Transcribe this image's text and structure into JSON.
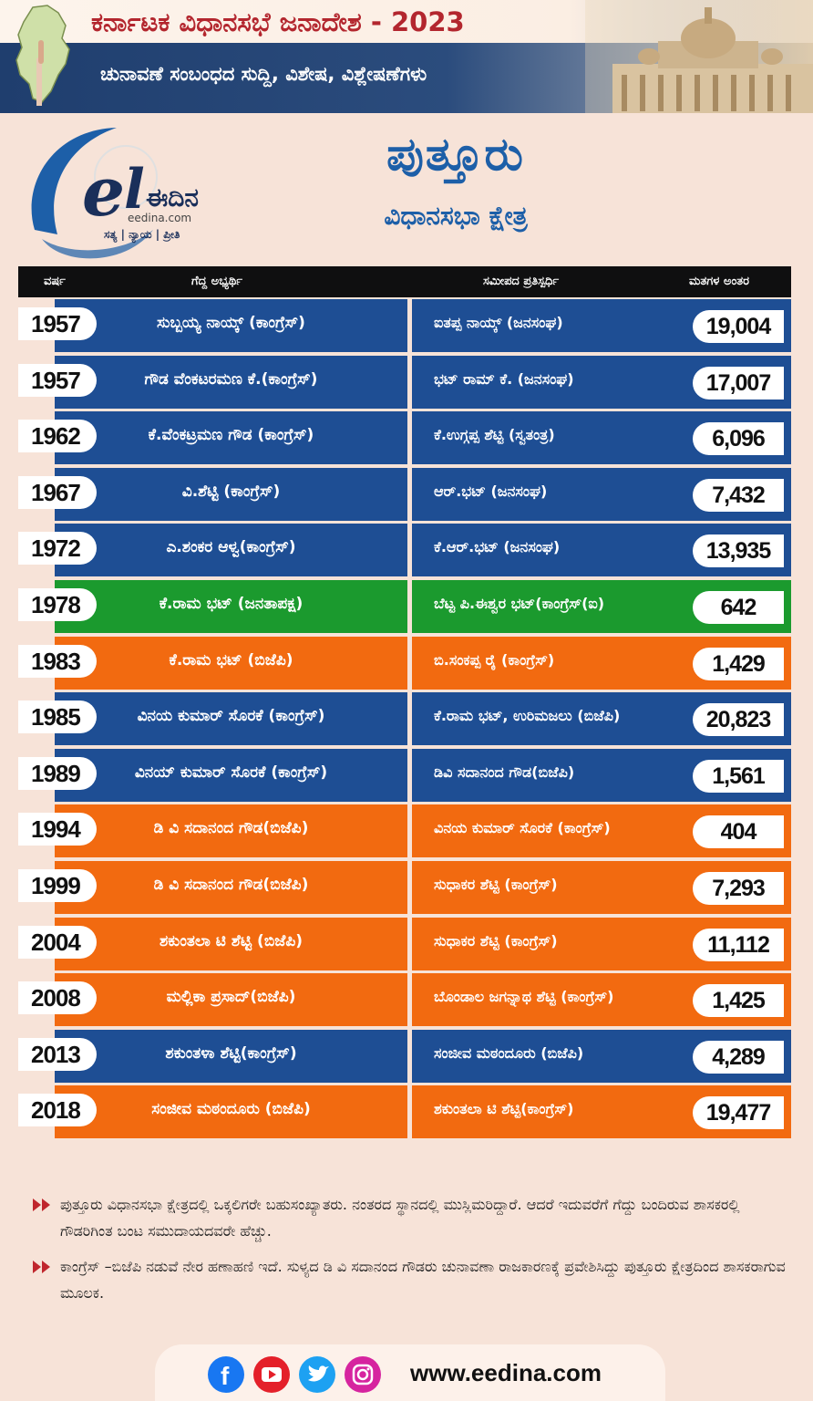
{
  "header": {
    "title": "ಕರ್ನಾಟಕ ವಿಧಾನಸಭೆ ಜನಾದೇಶ - 2023",
    "subtitle": "ಚುನಾವಣೆ ಸಂಬಂಧದ ಸುದ್ದಿ, ವಿಶೇಷ, ವಿಶ್ಲೇಷಣೆಗಳು"
  },
  "logo": {
    "name": "ಈದಿನ",
    "domain": "eedina.com",
    "tagline": "ಸತ್ಯ | ನ್ಯಾಯ | ಪ್ರೀತಿ"
  },
  "constituency": {
    "name": "ಪುತ್ತೂರು",
    "type": "ವಿಧಾನಸಭಾ ಕ್ಷೇತ್ರ"
  },
  "table": {
    "headers": {
      "year": "ವರ್ಷ",
      "winner": "ಗೆದ್ದ ಅಭ್ಯರ್ಥಿ",
      "runner": "ಸಮೀಪದ ಪ್ರತಿಸ್ಪರ್ಧಿ",
      "margin": "ಮತಗಳ ಅಂತರ"
    },
    "rows": [
      {
        "year": "1957",
        "winner": "ಸುಬ್ಬಯ್ಯ ನಾಯ್ಕ್ (ಕಾಂಗ್ರೆಸ್)",
        "runner": "ಐತಪ್ಪ ನಾಯ್ಕ್ (ಜನಸಂಘ)",
        "margin": "19,004",
        "color": "#1e4e94"
      },
      {
        "year": "1957",
        "winner": "ಗೌಡ ವೆಂಕಟರಮಣ ಕೆ.(ಕಾಂಗ್ರೆಸ್)",
        "runner": "ಭಟ್ ರಾಮ್ ಕೆ. (ಜನಸಂಘ)",
        "margin": "17,007",
        "color": "#1e4e94"
      },
      {
        "year": "1962",
        "winner": "ಕೆ.ವೆಂಕಟ್ರಮಣ ಗೌಡ (ಕಾಂಗ್ರೆಸ್)",
        "runner": "ಕೆ.ಉಗ್ಗಪ್ಪ ಶೆಟ್ಟಿ (ಸ್ವತಂತ್ರ)",
        "margin": "6,096",
        "color": "#1e4e94"
      },
      {
        "year": "1967",
        "winner": "ವಿ.ಶೆಟ್ಟಿ (ಕಾಂಗ್ರೆಸ್)",
        "runner": "ಆರ್.ಭಟ್ (ಜನಸಂಘ)",
        "margin": "7,432",
        "color": "#1e4e94"
      },
      {
        "year": "1972",
        "winner": "ಎ.ಶಂಕರ ಆಳ್ವ(ಕಾಂಗ್ರೆಸ್)",
        "runner": "ಕೆ.ಆರ್.ಭಟ್ (ಜನಸಂಘ)",
        "margin": "13,935",
        "color": "#1e4e94"
      },
      {
        "year": "1978",
        "winner": "ಕೆ.ರಾಮ ಭಟ್ (ಜನತಾಪಕ್ಷ)",
        "runner": "ಬೆಟ್ಟ ಪಿ.ಈಶ್ವರ ಭಟ್(ಕಾಂಗ್ರೆಸ್(ಐ)",
        "margin": "642",
        "color": "#1b9a2e"
      },
      {
        "year": "1983",
        "winner": "ಕೆ.ರಾಮ ಭಟ್ (ಬಿಜೆಪಿ)",
        "runner": "ಬಿ.ಸಂಕಪ್ಪ ರೈ (ಕಾಂಗ್ರೆಸ್)",
        "margin": "1,429",
        "color": "#f26a10"
      },
      {
        "year": "1985",
        "winner": "ವಿನಯ ಕುಮಾರ್ ಸೊರಕೆ (ಕಾಂಗ್ರೆಸ್)",
        "runner": "ಕೆ.ರಾಮ ಭಟ್, ಉರಿಮಜಲು (ಬಿಜೆಪಿ)",
        "margin": "20,823",
        "color": "#1e4e94"
      },
      {
        "year": "1989",
        "winner": "ವಿನಯ್ ಕುಮಾರ್ ಸೊರಕೆ (ಕಾಂಗ್ರೆಸ್)",
        "runner": "ಡಿವಿ ಸದಾನಂದ ಗೌಡ(ಬಿಜೆಪಿ)",
        "margin": "1,561",
        "color": "#1e4e94"
      },
      {
        "year": "1994",
        "winner": "ಡಿ ವಿ ಸದಾನಂದ ಗೌಡ(ಬಿಜೆಪಿ)",
        "runner": "ವಿನಯ ಕುಮಾರ್ ಸೊರಕೆ (ಕಾಂಗ್ರೆಸ್)",
        "margin": "404",
        "color": "#f26a10"
      },
      {
        "year": "1999",
        "winner": "ಡಿ ವಿ ಸದಾನಂದ ಗೌಡ(ಬಿಜೆಪಿ)",
        "runner": "ಸುಧಾಕರ ಶೆಟ್ಟಿ (ಕಾಂಗ್ರೆಸ್)",
        "margin": "7,293",
        "color": "#f26a10"
      },
      {
        "year": "2004",
        "winner": "ಶಕುಂತಲಾ ಟಿ ಶೆಟ್ಟಿ (ಬಿಜೆಪಿ)",
        "runner": "ಸುಧಾಕರ ಶೆಟ್ಟಿ (ಕಾಂಗ್ರೆಸ್)",
        "margin": "11,112",
        "color": "#f26a10"
      },
      {
        "year": "2008",
        "winner": "ಮಲ್ಲಿಕಾ ಪ್ರಸಾದ್(ಬಿಜೆಪಿ)",
        "runner": "ಬೊಂಡಾಲ ಜಗನ್ನಾಥ ಶೆಟ್ಟಿ (ಕಾಂಗ್ರೆಸ್)",
        "margin": "1,425",
        "color": "#f26a10"
      },
      {
        "year": "2013",
        "winner": "ಶಕುಂತಳಾ ಶೆಟ್ಟಿ(ಕಾಂಗ್ರೆಸ್)",
        "runner": "ಸಂಜೀವ ಮಠಂದೂರು (ಬಿಜೆಪಿ)",
        "margin": "4,289",
        "color": "#1e4e94"
      },
      {
        "year": "2018",
        "winner": "ಸಂಜೀವ ಮಠಂದೂರು (ಬಿಜೆಪಿ)",
        "runner": "ಶಕುಂತಲಾ ಟಿ ಶೆಟ್ಟಿ(ಕಾಂಗ್ರೆಸ್)",
        "margin": "19,477",
        "color": "#f26a10"
      }
    ]
  },
  "notes": [
    "ಪುತ್ತೂರು ವಿಧಾನಸಭಾ ಕ್ಷೇತ್ರದಲ್ಲಿ ಒಕ್ಕಲಿಗರೇ ಬಹುಸಂಖ್ಯಾತರು. ನಂತರದ ಸ್ಥಾನದಲ್ಲಿ ಮುಸ್ಲಿಮರಿದ್ದಾರೆ. ಆದರೆ ಇದುವರೆಗೆ ಗೆದ್ದು ಬಂದಿರುವ ಶಾಸಕರಲ್ಲಿ ಗೌಡರಿಗಿಂತ ಬಂಟ ಸಮುದಾಯದವರೇ ಹೆಚ್ಚು.",
    "ಕಾಂಗ್ರೆಸ್ –ಬಿಜೆಪಿ ನಡುವೆ ನೇರ ಹಣಾಹಣಿ ಇದೆ. ಸುಳ್ಯದ ಡಿ ವಿ ಸದಾನಂದ ಗೌಡರು ಚುನಾವಣಾ ರಾಜಕಾರಣಕ್ಕೆ ಪ್ರವೇಶಿಸಿದ್ದು ಪುತ್ತೂರು ಕ್ಷೇತ್ರದಿಂದ ಶಾಸಕರಾಗುವ ಮೂಲಕ."
  ],
  "footer": {
    "website": "www.eedina.com",
    "icons": [
      "facebook-icon",
      "youtube-icon",
      "twitter-icon",
      "instagram-icon"
    ]
  },
  "colors": {
    "congress": "#1e4e94",
    "bjp": "#f26a10",
    "janata": "#1b9a2e",
    "heading": "#1d5fa8",
    "title_red": "#b3262e"
  }
}
